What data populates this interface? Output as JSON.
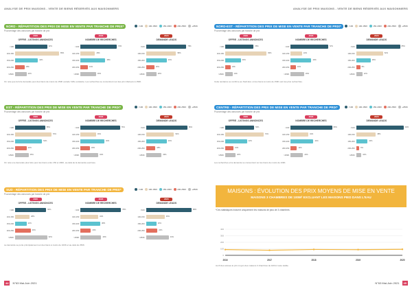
{
  "runhead": {
    "left": "ANALYSE DE PRIX MAISONS - VENTE DE BIENS RÉSERVÉS AUX MAISONNIERS",
    "right": "ANALYSE DE PRIX MAISONS - VENTE DE BIENS RÉSERVÉS AUX MAISONNIERS"
  },
  "colors": {
    "c1": "#2d5d6f",
    "c2": "#e7d3b6",
    "c3": "#5bc2cf",
    "c4": "#e36f5e",
    "c5": "#bdbdbd",
    "green": "#7ab648",
    "blue": "#2c8fd6",
    "yellow": "#f2b53d",
    "pink": "#d93f5e",
    "offre": "#d93f5e",
    "demande": "#c0392b"
  },
  "legend": [
    {
      "label": "<100",
      "color": "#2d5d6f"
    },
    {
      "label": "100-150K",
      "color": "#e7d3b6"
    },
    {
      "label": "150-200K",
      "color": "#5bc2cf"
    },
    {
      "label": "200-250K",
      "color": "#e36f5e"
    },
    {
      "label": "+250K",
      "color": "#bdbdbd"
    }
  ],
  "row_labels": [
    "<100",
    "100-150",
    "150-200",
    "200-250",
    ">250K"
  ],
  "panel_tags": [
    "2020",
    "2020",
    "2020"
  ],
  "panel_titles": [
    "OFFRE - LISTINGS ANNONCES",
    "NOMBRE DE RECHERCHES",
    "DEMANDE LEADS"
  ],
  "sub": "Pourcentage des annonces par tranche de prix",
  "sections": [
    {
      "key": "nord",
      "title_prefix": "NORD",
      "title": " - RÉPARTITION DES PRIX DE MISE EN VENTE PAR TRANCHE DE PRIX*",
      "color": "#7ab648",
      "panels": [
        {
          "values": [
            62,
            85,
            44,
            18,
            22
          ]
        },
        {
          "values": [
            70,
            28,
            48,
            14,
            30
          ]
        },
        {
          "values": [
            78,
            58,
            40,
            16,
            20
          ]
        }
      ],
      "note": "On note que la forte demande pour des biens de moins de 150K excède l'offre existante. Les recherches se concentrent sur des prix inférieurs à 150K."
    },
    {
      "key": "nordest",
      "title_prefix": "NORD-EST",
      "title": " - RÉPARTITION DES PRIX DE MISE EN VENTE PAR TRANCHE DE PRIX*",
      "color": "#2c8fd6",
      "panels": [
        {
          "values": [
            55,
            80,
            30,
            10,
            14
          ]
        },
        {
          "values": [
            72,
            22,
            40,
            10,
            26
          ]
        },
        {
          "values": [
            85,
            52,
            28,
            8,
            12
          ]
        }
      ],
      "note": "Cette tendance se confirme au Nord-Est, où les biens à moins de 150K sont les plus recherchés."
    },
    {
      "key": "est",
      "title_prefix": "EST",
      "title": " - RÉPARTITION DES PRIX DE MISE EN VENTE PAR TRANCHE DE PRIX*",
      "color": "#7ab648",
      "panels": [
        {
          "values": [
            58,
            70,
            52,
            22,
            26
          ]
        },
        {
          "values": [
            76,
            30,
            46,
            18,
            34
          ]
        },
        {
          "values": [
            80,
            54,
            40,
            18,
            30
          ]
        }
      ],
      "note": "On note une demande plus forte pour les biens entre 150 et 200K, au-delà de la demande exprimée."
    },
    {
      "key": "centre",
      "title_prefix": "CENTRE",
      "title": " - RÉPARTITION DES PRIX DE MISE EN VENTE PAR TRANCHE DE PRIX*",
      "color": "#2c8fd6",
      "panels": [
        {
          "values": [
            56,
            74,
            42,
            16,
            20
          ]
        },
        {
          "values": [
            80,
            34,
            44,
            12,
            24
          ]
        },
        {
          "values": [
            92,
            38,
            22,
            6,
            10
          ]
        }
      ],
      "note": "Les recherches et la demande se concentrent sur les biens de moins de 100K."
    },
    {
      "key": "sud",
      "title_prefix": "SUD",
      "title": " - RÉPARTITION DES PRIX DE MISE EN VENTE PAR TRANCHE DE PRIX*",
      "color": "#f2b53d",
      "panels": [
        {
          "values": [
            60,
            28,
            22,
            30,
            62
          ]
        },
        {
          "values": [
            78,
            34,
            38,
            20,
            40
          ]
        },
        {
          "values": [
            88,
            36,
            20,
            22,
            44
          ]
        }
      ],
      "note": "La demande se porte principalement sur des biens à moins de 100K et au-delà de 250K."
    }
  ],
  "banner": {
    "line1": "MAISONS : ÉVOLUTION DES PRIX MOYENS DE MISE EN VENTE",
    "line2": "MAISONS 3 CHAMBRES DE 100M² EXCLUANT LES MAISONS PIED DANS L'EAU"
  },
  "graph_note": "*Ces statistiques incluent uniquement les maisons de plus de 3 chambres.",
  "chart_data": {
    "type": "line",
    "x": [
      "2016",
      "2017",
      "2018",
      "2019",
      "2020"
    ],
    "series": [
      {
        "values": [
          88,
          78,
          90,
          87,
          92
        ]
      }
    ],
    "y_ticks": [
      "400",
      "300",
      "200",
      "100",
      "0"
    ],
    "ylim": [
      0,
      400
    ]
  },
  "graph_foot": "Au fil des années le prix moyen des maisons 3 chambres de 100m² reste stable.",
  "footer": {
    "page_left": "44",
    "issue_left": "N°63 Mai-Juin 2021",
    "issue_right": "N°63 Mai-Juin 2021",
    "page_right": "45"
  }
}
